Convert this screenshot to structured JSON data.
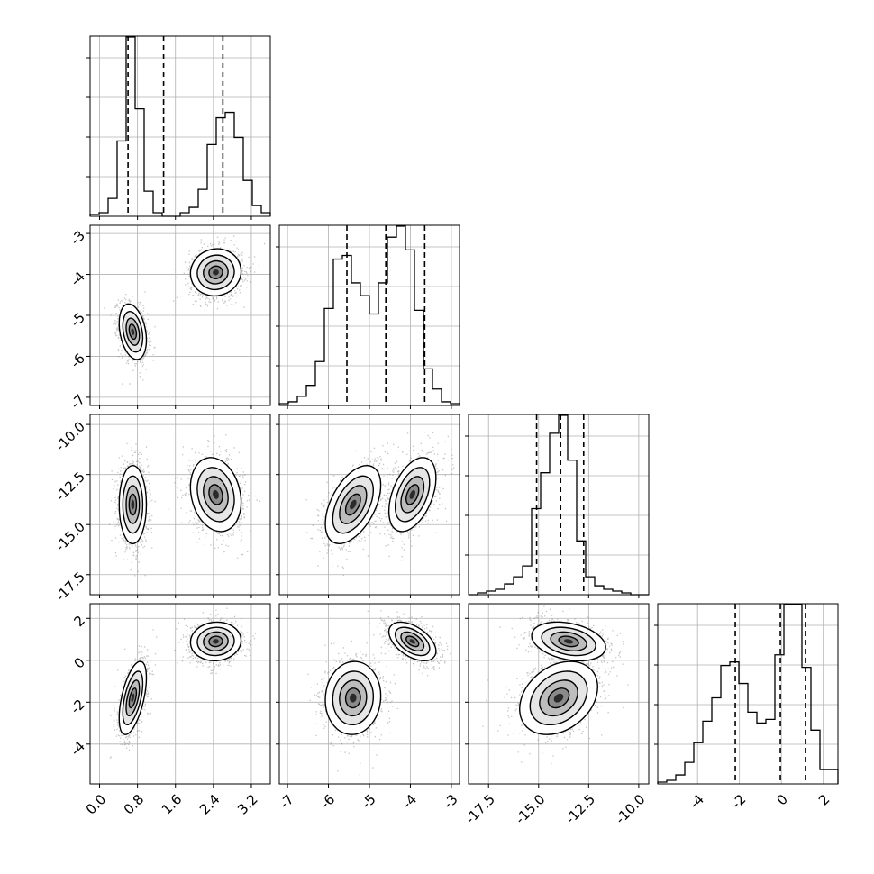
{
  "chart_data": {
    "type": "corner",
    "title": "",
    "parameters": [
      {
        "index": 0,
        "range": [
          -0.2,
          3.6
        ],
        "ticks": [
          "0.0",
          "0.8",
          "1.6",
          "2.4",
          "3.2"
        ],
        "tick_values": [
          0.0,
          0.8,
          1.6,
          2.4,
          3.2
        ],
        "quantiles": [
          0.6,
          1.35,
          2.6
        ],
        "histogram": [
          0.01,
          0.02,
          0.1,
          0.42,
          1.0,
          0.6,
          0.14,
          0.02,
          0.0,
          0.0,
          0.02,
          0.05,
          0.15,
          0.4,
          0.55,
          0.58,
          0.44,
          0.2,
          0.06,
          0.02
        ]
      },
      {
        "index": 1,
        "range": [
          -7.2,
          -2.8
        ],
        "ticks": [
          "-7",
          "-6",
          "-5",
          "-4",
          "-3"
        ],
        "tick_values": [
          -7,
          -6,
          -5,
          -4,
          -3
        ],
        "quantiles": [
          -5.55,
          -4.6,
          -3.65
        ],
        "histogram": [
          0.01,
          0.02,
          0.05,
          0.11,
          0.24,
          0.53,
          0.8,
          0.82,
          0.67,
          0.6,
          0.5,
          0.67,
          0.92,
          0.98,
          0.85,
          0.52,
          0.2,
          0.09,
          0.02,
          0.01
        ]
      },
      {
        "index": 2,
        "range": [
          -18.5,
          -9.5
        ],
        "ticks": [
          "-17.5",
          "-15.0",
          "-12.5",
          "-10.0"
        ],
        "tick_values": [
          -17.5,
          -15.0,
          -12.5,
          -10.0
        ],
        "quantiles": [
          -15.1,
          -13.9,
          -12.75
        ],
        "histogram": [
          0.0,
          0.01,
          0.02,
          0.03,
          0.06,
          0.1,
          0.16,
          0.48,
          0.68,
          0.9,
          1.0,
          0.75,
          0.3,
          0.1,
          0.05,
          0.03,
          0.02,
          0.01,
          0.0,
          0.0
        ]
      },
      {
        "index": 3,
        "range": [
          -5.9,
          2.7
        ],
        "ticks": [
          "-4",
          "-2",
          "0",
          "2"
        ],
        "tick_values": [
          -4,
          -2,
          0,
          2
        ],
        "quantiles": [
          -2.2,
          -0.05,
          1.15
        ],
        "histogram": [
          0.01,
          0.02,
          0.05,
          0.12,
          0.23,
          0.35,
          0.48,
          0.66,
          0.68,
          0.56,
          0.4,
          0.34,
          0.36,
          0.72,
          1.0,
          1.0,
          0.65,
          0.3,
          0.08,
          0.08
        ]
      }
    ],
    "modes": [
      {
        "weight": 0.5,
        "mean": [
          0.7,
          -5.4,
          -14.0,
          -1.8
        ],
        "std": [
          0.14,
          0.33,
          0.95,
          0.85
        ]
      },
      {
        "weight": 0.5,
        "mean": [
          2.45,
          -3.95,
          -13.5,
          0.9
        ],
        "std": [
          0.26,
          0.28,
          0.9,
          0.45
        ]
      }
    ],
    "pair_correlations": {
      "1-0": [
        -0.3,
        0.05
      ],
      "2-0": [
        0.0,
        -0.2
      ],
      "3-0": [
        0.55,
        0.05
      ],
      "2-1": [
        0.5,
        0.45
      ],
      "3-1": [
        0.05,
        -0.5
      ],
      "3-2": [
        0.3,
        -0.3
      ]
    },
    "grid": true,
    "legend": "none"
  }
}
